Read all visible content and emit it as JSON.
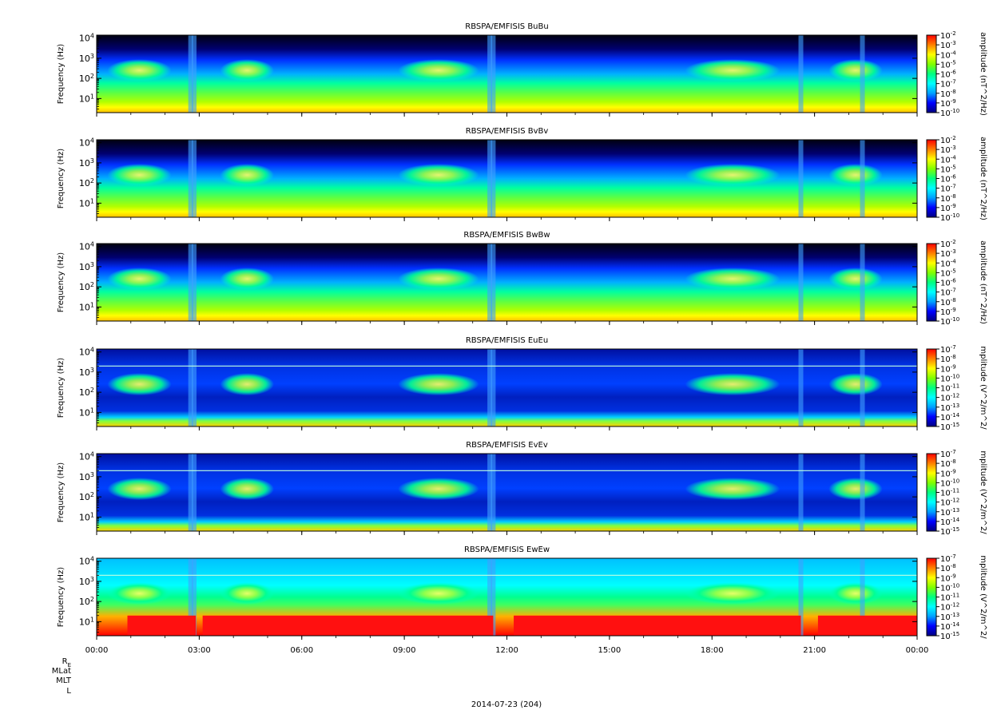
{
  "chart_data": {
    "type": "heatmap",
    "date_label": "2014-07-23 (204)",
    "x_ticks": [
      "00:00",
      "03:00",
      "06:00",
      "09:00",
      "12:00",
      "15:00",
      "18:00",
      "21:00",
      "00:00"
    ],
    "ephemeris_labels": [
      "R",
      "MLat",
      "MLT",
      "L"
    ],
    "ephemeris_subscript": "E",
    "y_scale": "log",
    "ylim": [
      2,
      14000
    ],
    "panels": [
      {
        "title": "RBSPA/EMFISIS  BuBu",
        "ylabel": "Frequency (Hz)",
        "zlabel": "amplitude (nT^2/Hz)",
        "y_ticks": [
          {
            "base": "10",
            "exp": "4"
          },
          {
            "base": "10",
            "exp": "3"
          },
          {
            "base": "10",
            "exp": "2"
          },
          {
            "base": "10",
            "exp": "1"
          }
        ],
        "z_ticks": [
          {
            "base": "10",
            "exp": "-2"
          },
          {
            "base": "10",
            "exp": "-3"
          },
          {
            "base": "10",
            "exp": "-4"
          },
          {
            "base": "10",
            "exp": "-5"
          },
          {
            "base": "10",
            "exp": "-6"
          },
          {
            "base": "10",
            "exp": "-7"
          },
          {
            "base": "10",
            "exp": "-8"
          },
          {
            "base": "10",
            "exp": "-9"
          },
          {
            "base": "10",
            "exp": "-10"
          }
        ]
      },
      {
        "title": "RBSPA/EMFISIS  BvBv",
        "ylabel": "Frequency (Hz)",
        "zlabel": "amplitude (nT^2/Hz)",
        "y_ticks": [
          {
            "base": "10",
            "exp": "4"
          },
          {
            "base": "10",
            "exp": "3"
          },
          {
            "base": "10",
            "exp": "2"
          },
          {
            "base": "10",
            "exp": "1"
          }
        ],
        "z_ticks": [
          {
            "base": "10",
            "exp": "-2"
          },
          {
            "base": "10",
            "exp": "-3"
          },
          {
            "base": "10",
            "exp": "-4"
          },
          {
            "base": "10",
            "exp": "-5"
          },
          {
            "base": "10",
            "exp": "-6"
          },
          {
            "base": "10",
            "exp": "-7"
          },
          {
            "base": "10",
            "exp": "-8"
          },
          {
            "base": "10",
            "exp": "-9"
          },
          {
            "base": "10",
            "exp": "-10"
          }
        ]
      },
      {
        "title": "RBSPA/EMFISIS  BwBw",
        "ylabel": "Frequency (Hz)",
        "zlabel": "amplitude (nT^2/Hz)",
        "y_ticks": [
          {
            "base": "10",
            "exp": "4"
          },
          {
            "base": "10",
            "exp": "3"
          },
          {
            "base": "10",
            "exp": "2"
          },
          {
            "base": "10",
            "exp": "1"
          }
        ],
        "z_ticks": [
          {
            "base": "10",
            "exp": "-2"
          },
          {
            "base": "10",
            "exp": "-3"
          },
          {
            "base": "10",
            "exp": "-4"
          },
          {
            "base": "10",
            "exp": "-5"
          },
          {
            "base": "10",
            "exp": "-6"
          },
          {
            "base": "10",
            "exp": "-7"
          },
          {
            "base": "10",
            "exp": "-8"
          },
          {
            "base": "10",
            "exp": "-9"
          },
          {
            "base": "10",
            "exp": "-10"
          }
        ]
      },
      {
        "title": "RBSPA/EMFISIS  EuEu",
        "ylabel": "Frequency (Hz)",
        "zlabel": "mplitude (V^2/m^2/",
        "y_ticks": [
          {
            "base": "10",
            "exp": "4"
          },
          {
            "base": "10",
            "exp": "3"
          },
          {
            "base": "10",
            "exp": "2"
          },
          {
            "base": "10",
            "exp": "1"
          }
        ],
        "z_ticks": [
          {
            "base": "10",
            "exp": "-7"
          },
          {
            "base": "10",
            "exp": "-8"
          },
          {
            "base": "10",
            "exp": "-9"
          },
          {
            "base": "10",
            "exp": "-10"
          },
          {
            "base": "10",
            "exp": "-11"
          },
          {
            "base": "10",
            "exp": "-12"
          },
          {
            "base": "10",
            "exp": "-13"
          },
          {
            "base": "10",
            "exp": "-14"
          },
          {
            "base": "10",
            "exp": "-15"
          }
        ]
      },
      {
        "title": "RBSPA/EMFISIS  EvEv",
        "ylabel": "Frequency (Hz)",
        "zlabel": "mplitude (V^2/m^2/",
        "y_ticks": [
          {
            "base": "10",
            "exp": "4"
          },
          {
            "base": "10",
            "exp": "3"
          },
          {
            "base": "10",
            "exp": "2"
          },
          {
            "base": "10",
            "exp": "1"
          }
        ],
        "z_ticks": [
          {
            "base": "10",
            "exp": "-7"
          },
          {
            "base": "10",
            "exp": "-8"
          },
          {
            "base": "10",
            "exp": "-9"
          },
          {
            "base": "10",
            "exp": "-10"
          },
          {
            "base": "10",
            "exp": "-11"
          },
          {
            "base": "10",
            "exp": "-12"
          },
          {
            "base": "10",
            "exp": "-13"
          },
          {
            "base": "10",
            "exp": "-14"
          },
          {
            "base": "10",
            "exp": "-15"
          }
        ]
      },
      {
        "title": "RBSPA/EMFISIS  EwEw",
        "ylabel": "Frequency (Hz)",
        "zlabel": "mplitude (V^2/m^2/",
        "y_ticks": [
          {
            "base": "10",
            "exp": "4"
          },
          {
            "base": "10",
            "exp": "3"
          },
          {
            "base": "10",
            "exp": "2"
          },
          {
            "base": "10",
            "exp": "1"
          }
        ],
        "z_ticks": [
          {
            "base": "10",
            "exp": "-7"
          },
          {
            "base": "10",
            "exp": "-8"
          },
          {
            "base": "10",
            "exp": "-9"
          },
          {
            "base": "10",
            "exp": "-10"
          },
          {
            "base": "10",
            "exp": "-11"
          },
          {
            "base": "10",
            "exp": "-12"
          },
          {
            "base": "10",
            "exp": "-13"
          },
          {
            "base": "10",
            "exp": "-14"
          },
          {
            "base": "10",
            "exp": "-15"
          }
        ]
      }
    ],
    "colormap": [
      "#000080",
      "#0000ff",
      "#00a0ff",
      "#00ffff",
      "#00ff80",
      "#80ff00",
      "#ffff00",
      "#ff8000",
      "#ff0000"
    ]
  }
}
